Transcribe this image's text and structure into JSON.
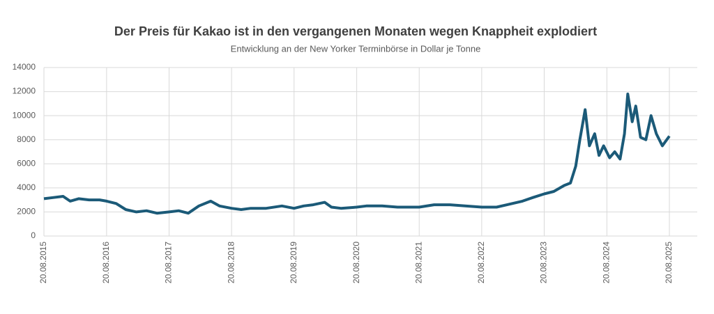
{
  "chart_data": {
    "type": "line",
    "title": "Der Preis für Kakao ist in den vergangenen Monaten wegen Knappheit explodiert",
    "subtitle": "Entwicklung an der New Yorker Terminbörse in Dollar je Tonne",
    "x": [
      "2015-08-20",
      "2015-10-15",
      "2015-12-10",
      "2016-01-20",
      "2016-03-10",
      "2016-05-10",
      "2016-07-10",
      "2016-08-20",
      "2016-10-15",
      "2016-12-10",
      "2017-02-10",
      "2017-04-10",
      "2017-06-10",
      "2017-08-20",
      "2017-10-15",
      "2017-12-10",
      "2018-02-10",
      "2018-04-20",
      "2018-06-10",
      "2018-08-20",
      "2018-10-15",
      "2018-12-10",
      "2019-03-10",
      "2019-06-10",
      "2019-08-20",
      "2019-10-15",
      "2019-12-10",
      "2020-02-15",
      "2020-03-25",
      "2020-05-20",
      "2020-08-20",
      "2020-10-15",
      "2021-01-15",
      "2021-04-15",
      "2021-08-20",
      "2021-11-15",
      "2022-02-15",
      "2022-05-15",
      "2022-08-20",
      "2022-11-15",
      "2023-01-15",
      "2023-04-15",
      "2023-06-15",
      "2023-08-20",
      "2023-10-15",
      "2023-12-15",
      "2024-01-20",
      "2024-02-20",
      "2024-03-15",
      "2024-04-15",
      "2024-05-10",
      "2024-06-10",
      "2024-07-05",
      "2024-08-01",
      "2024-09-05",
      "2024-10-05",
      "2024-11-05",
      "2024-12-01",
      "2024-12-20",
      "2025-01-15",
      "2025-02-05",
      "2025-03-05",
      "2025-04-05",
      "2025-05-05",
      "2025-06-05",
      "2025-07-10",
      "2025-08-20"
    ],
    "series": [
      {
        "name": "Kakao",
        "color": "#1b5a78",
        "values": [
          3100,
          3200,
          3300,
          2900,
          3100,
          3000,
          3000,
          2900,
          2700,
          2200,
          2000,
          2100,
          1900,
          2000,
          2100,
          1900,
          2500,
          2900,
          2500,
          2300,
          2200,
          2300,
          2300,
          2500,
          2300,
          2500,
          2600,
          2800,
          2400,
          2300,
          2400,
          2500,
          2500,
          2400,
          2400,
          2600,
          2600,
          2500,
          2400,
          2400,
          2600,
          2900,
          3200,
          3500,
          3700,
          4200,
          4400,
          5800,
          8000,
          10500,
          7500,
          8500,
          6700,
          7500,
          6500,
          7000,
          6400,
          8500,
          11800,
          9500,
          10800,
          8200,
          8000,
          10000,
          8500,
          7500,
          8300
        ]
      }
    ],
    "xlim": [
      "2015-08-20",
      "2026-01-30"
    ],
    "xticks": [
      {
        "value": "2015-08-20",
        "label": "20.08.2015"
      },
      {
        "value": "2016-08-20",
        "label": "20.08.2016"
      },
      {
        "value": "2017-08-20",
        "label": "20.08.2017"
      },
      {
        "value": "2018-08-20",
        "label": "20.08.2018"
      },
      {
        "value": "2019-08-20",
        "label": "20.08.2019"
      },
      {
        "value": "2020-08-20",
        "label": "20.08.2020"
      },
      {
        "value": "2021-08-20",
        "label": "20.08.2021"
      },
      {
        "value": "2022-08-20",
        "label": "20.08.2022"
      },
      {
        "value": "2023-08-20",
        "label": "20.08.2023"
      },
      {
        "value": "2024-08-20",
        "label": "20.08.2024"
      },
      {
        "value": "2025-08-20",
        "label": "20.08.2025"
      }
    ],
    "ylim": [
      0,
      14000
    ],
    "yticks": [
      0,
      2000,
      4000,
      6000,
      8000,
      10000,
      12000,
      14000
    ],
    "grid": true
  }
}
